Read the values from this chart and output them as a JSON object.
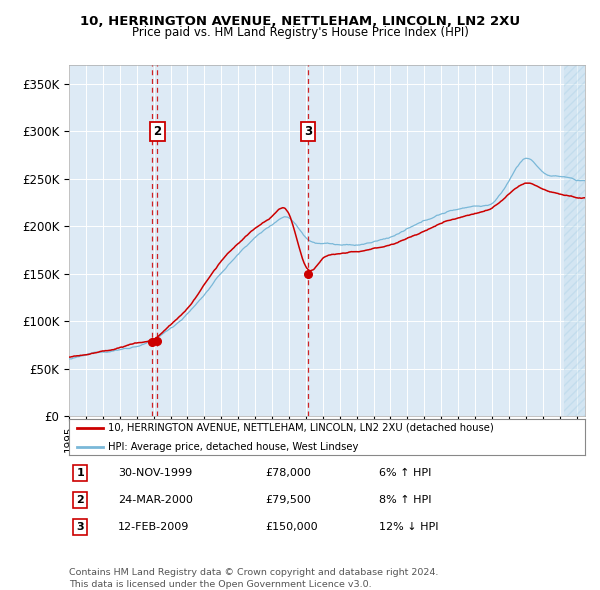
{
  "title": "10, HERRINGTON AVENUE, NETTLEHAM, LINCOLN, LN2 2XU",
  "subtitle": "Price paid vs. HM Land Registry's House Price Index (HPI)",
  "ylabel_ticks": [
    "£0",
    "£50K",
    "£100K",
    "£150K",
    "£200K",
    "£250K",
    "£300K",
    "£350K"
  ],
  "ylabel_values": [
    0,
    50000,
    100000,
    150000,
    200000,
    250000,
    300000,
    350000
  ],
  "ylim": [
    0,
    370000
  ],
  "xlim_start": 1995.0,
  "xlim_end": 2025.5,
  "sale_dates": [
    1999.917,
    2000.23,
    2009.12
  ],
  "sale_prices": [
    78000,
    79500,
    150000
  ],
  "sale_labels": [
    "1",
    "2",
    "3"
  ],
  "hpi_line_color": "#7ab8d8",
  "sale_line_color": "#cc0000",
  "sale_dot_color": "#cc0000",
  "marker_box_color": "#cc0000",
  "background_plot": "#ddeaf5",
  "background_fig": "#ffffff",
  "grid_color": "#ffffff",
  "legend_entries": [
    "10, HERRINGTON AVENUE, NETTLEHAM, LINCOLN, LN2 2XU (detached house)",
    "HPI: Average price, detached house, West Lindsey"
  ],
  "table_rows": [
    [
      "1",
      "30-NOV-1999",
      "£78,000",
      "6% ↑ HPI"
    ],
    [
      "2",
      "24-MAR-2000",
      "£79,500",
      "8% ↑ HPI"
    ],
    [
      "3",
      "12-FEB-2009",
      "£150,000",
      "12% ↓ HPI"
    ]
  ],
  "footnote": "Contains HM Land Registry data © Crown copyright and database right 2024.\nThis data is licensed under the Open Government Licence v3.0.",
  "hatch_start": 2024.25
}
